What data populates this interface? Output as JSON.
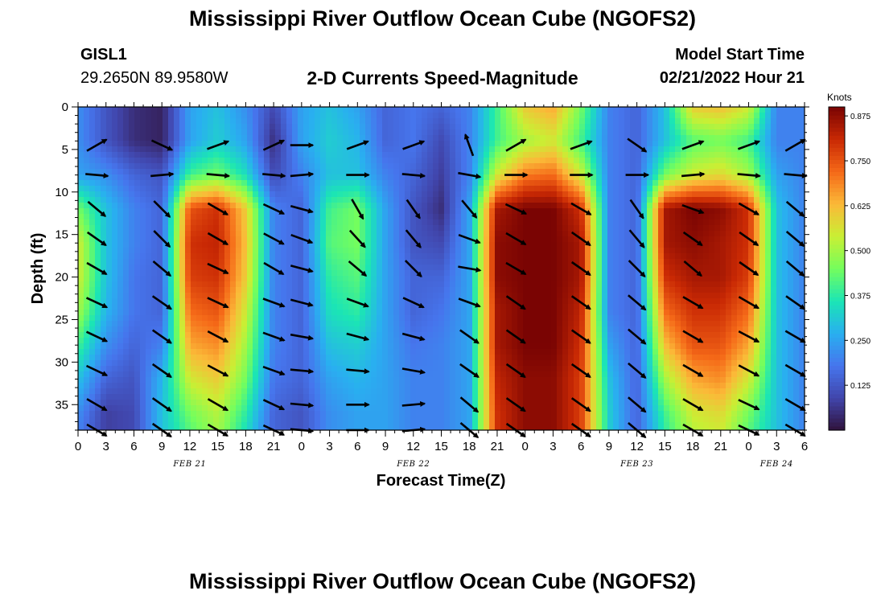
{
  "header": {
    "title": "Mississippi River Outflow Ocean Cube (NGOFS2)",
    "station_id": "GISL1",
    "station_coords": "29.2650N  89.9580W",
    "subtitle": "2-D Currents Speed-Magnitude",
    "model_start_label": "Model Start Time",
    "model_start_value": "02/21/2022 Hour 21"
  },
  "footer": {
    "title": "Mississippi River Outflow Ocean Cube (NGOFS2)"
  },
  "chart_data": {
    "type": "heatmap",
    "xlabel": "Forecast Time(Z)",
    "ylabel": "Depth (ft)",
    "x_tick_labels": [
      "0",
      "3",
      "6",
      "9",
      "12",
      "15",
      "18",
      "21",
      "0",
      "3",
      "6",
      "9",
      "12",
      "15",
      "18",
      "21",
      "0",
      "3",
      "6",
      "9",
      "12",
      "15",
      "18",
      "21",
      "0",
      "3",
      "6"
    ],
    "date_labels": [
      {
        "label": "FEB 21",
        "hour": 12
      },
      {
        "label": "FEB 22",
        "hour": 36
      },
      {
        "label": "FEB 23",
        "hour": 60
      },
      {
        "label": "FEB 24",
        "hour": 75
      }
    ],
    "xlim_hours": [
      0,
      78
    ],
    "ylim_ft": [
      0,
      38
    ],
    "y_ticks": [
      0,
      5,
      10,
      15,
      20,
      25,
      30,
      35
    ],
    "colorbar": {
      "label": "Knots",
      "range": [
        0,
        0.9
      ],
      "ticks": [
        "0.875",
        "0.750",
        "0.625",
        "0.500",
        "0.375",
        "0.250",
        "0.125"
      ],
      "tick_values": [
        0.875,
        0.75,
        0.625,
        0.5,
        0.375,
        0.25,
        0.125
      ]
    },
    "speed_knots": {
      "hours": [
        0,
        3,
        6,
        9,
        12,
        15,
        18,
        21,
        24,
        27,
        30,
        33,
        36,
        39,
        42,
        45,
        48,
        51,
        54,
        57,
        60,
        63,
        66,
        69,
        72,
        75,
        78
      ],
      "depths_ft": [
        0,
        4,
        8,
        12,
        16,
        20,
        24,
        28,
        32,
        36,
        38
      ],
      "rows": [
        [
          0.22,
          0.12,
          0.05,
          0.03,
          0.25,
          0.3,
          0.22,
          0.1,
          0.25,
          0.3,
          0.25,
          0.15,
          0.18,
          0.15,
          0.2,
          0.4,
          0.6,
          0.65,
          0.45,
          0.2,
          0.15,
          0.3,
          0.6,
          0.62,
          0.55,
          0.2,
          0.2
        ],
        [
          0.22,
          0.12,
          0.05,
          0.03,
          0.25,
          0.32,
          0.25,
          0.05,
          0.25,
          0.32,
          0.28,
          0.15,
          0.18,
          0.1,
          0.2,
          0.4,
          0.5,
          0.55,
          0.4,
          0.2,
          0.15,
          0.3,
          0.42,
          0.45,
          0.4,
          0.2,
          0.2
        ],
        [
          0.25,
          0.22,
          0.15,
          0.12,
          0.4,
          0.45,
          0.35,
          0.1,
          0.2,
          0.3,
          0.3,
          0.2,
          0.15,
          0.08,
          0.2,
          0.55,
          0.7,
          0.72,
          0.55,
          0.2,
          0.15,
          0.45,
          0.55,
          0.58,
          0.5,
          0.25,
          0.2
        ],
        [
          0.45,
          0.3,
          0.2,
          0.15,
          0.75,
          0.8,
          0.6,
          0.2,
          0.15,
          0.4,
          0.45,
          0.25,
          0.12,
          0.05,
          0.25,
          0.85,
          0.9,
          0.9,
          0.8,
          0.2,
          0.15,
          0.85,
          0.9,
          0.88,
          0.8,
          0.3,
          0.2
        ],
        [
          0.55,
          0.3,
          0.2,
          0.15,
          0.8,
          0.82,
          0.62,
          0.2,
          0.15,
          0.42,
          0.45,
          0.25,
          0.12,
          0.1,
          0.25,
          0.88,
          0.9,
          0.9,
          0.85,
          0.2,
          0.15,
          0.85,
          0.88,
          0.85,
          0.8,
          0.3,
          0.2
        ],
        [
          0.55,
          0.3,
          0.18,
          0.15,
          0.78,
          0.8,
          0.6,
          0.2,
          0.15,
          0.38,
          0.42,
          0.25,
          0.15,
          0.15,
          0.25,
          0.88,
          0.9,
          0.9,
          0.85,
          0.2,
          0.15,
          0.8,
          0.85,
          0.85,
          0.78,
          0.3,
          0.2
        ],
        [
          0.5,
          0.28,
          0.18,
          0.15,
          0.72,
          0.75,
          0.55,
          0.2,
          0.15,
          0.35,
          0.38,
          0.25,
          0.15,
          0.18,
          0.25,
          0.85,
          0.9,
          0.9,
          0.82,
          0.2,
          0.15,
          0.72,
          0.8,
          0.8,
          0.72,
          0.3,
          0.2
        ],
        [
          0.4,
          0.22,
          0.15,
          0.2,
          0.65,
          0.68,
          0.5,
          0.2,
          0.15,
          0.3,
          0.32,
          0.25,
          0.18,
          0.2,
          0.25,
          0.85,
          0.9,
          0.9,
          0.8,
          0.25,
          0.15,
          0.62,
          0.75,
          0.75,
          0.65,
          0.3,
          0.2
        ],
        [
          0.3,
          0.15,
          0.12,
          0.28,
          0.55,
          0.6,
          0.45,
          0.18,
          0.15,
          0.25,
          0.28,
          0.25,
          0.2,
          0.2,
          0.25,
          0.82,
          0.88,
          0.88,
          0.78,
          0.3,
          0.15,
          0.5,
          0.65,
          0.68,
          0.55,
          0.3,
          0.2
        ],
        [
          0.22,
          0.08,
          0.1,
          0.3,
          0.45,
          0.52,
          0.38,
          0.15,
          0.12,
          0.22,
          0.25,
          0.25,
          0.2,
          0.2,
          0.25,
          0.8,
          0.88,
          0.88,
          0.78,
          0.32,
          0.15,
          0.4,
          0.55,
          0.58,
          0.45,
          0.3,
          0.2
        ],
        [
          0.2,
          0.08,
          0.1,
          0.3,
          0.42,
          0.5,
          0.35,
          0.15,
          0.12,
          0.22,
          0.25,
          0.25,
          0.2,
          0.2,
          0.25,
          0.8,
          0.88,
          0.88,
          0.78,
          0.32,
          0.15,
          0.38,
          0.52,
          0.55,
          0.42,
          0.3,
          0.2
        ]
      ]
    },
    "vector_grid": {
      "hours": [
        2,
        9,
        15,
        21,
        24,
        30,
        36,
        42,
        47,
        54,
        60,
        66,
        72,
        77
      ],
      "depths_ft": [
        4.5,
        8,
        12,
        15.5,
        19,
        23,
        27,
        31,
        35,
        38
      ],
      "angles_deg": [
        [
          -30,
          25,
          -20,
          -25,
          0,
          -20,
          -20,
          -110,
          -30,
          -20,
          35,
          -20,
          -20,
          -30
        ],
        [
          5,
          -5,
          5,
          5,
          -5,
          0,
          5,
          10,
          0,
          0,
          0,
          -5,
          5,
          5
        ],
        [
          40,
          45,
          30,
          25,
          15,
          60,
          55,
          50,
          25,
          30,
          55,
          20,
          30,
          40
        ],
        [
          35,
          45,
          30,
          28,
          20,
          48,
          50,
          20,
          30,
          35,
          50,
          35,
          35,
          40
        ],
        [
          30,
          40,
          25,
          30,
          15,
          40,
          45,
          10,
          30,
          35,
          45,
          40,
          35,
          40
        ],
        [
          25,
          35,
          25,
          20,
          15,
          20,
          25,
          20,
          35,
          35,
          40,
          30,
          30,
          35
        ],
        [
          25,
          35,
          28,
          20,
          10,
          15,
          15,
          35,
          35,
          35,
          40,
          30,
          28,
          30
        ],
        [
          25,
          35,
          28,
          20,
          5,
          5,
          10,
          35,
          35,
          35,
          40,
          30,
          28,
          30
        ],
        [
          30,
          35,
          30,
          25,
          5,
          0,
          -5,
          40,
          35,
          35,
          40,
          30,
          25,
          30
        ],
        [
          30,
          35,
          30,
          25,
          5,
          0,
          -5,
          40,
          35,
          35,
          40,
          30,
          25,
          30
        ]
      ]
    }
  }
}
